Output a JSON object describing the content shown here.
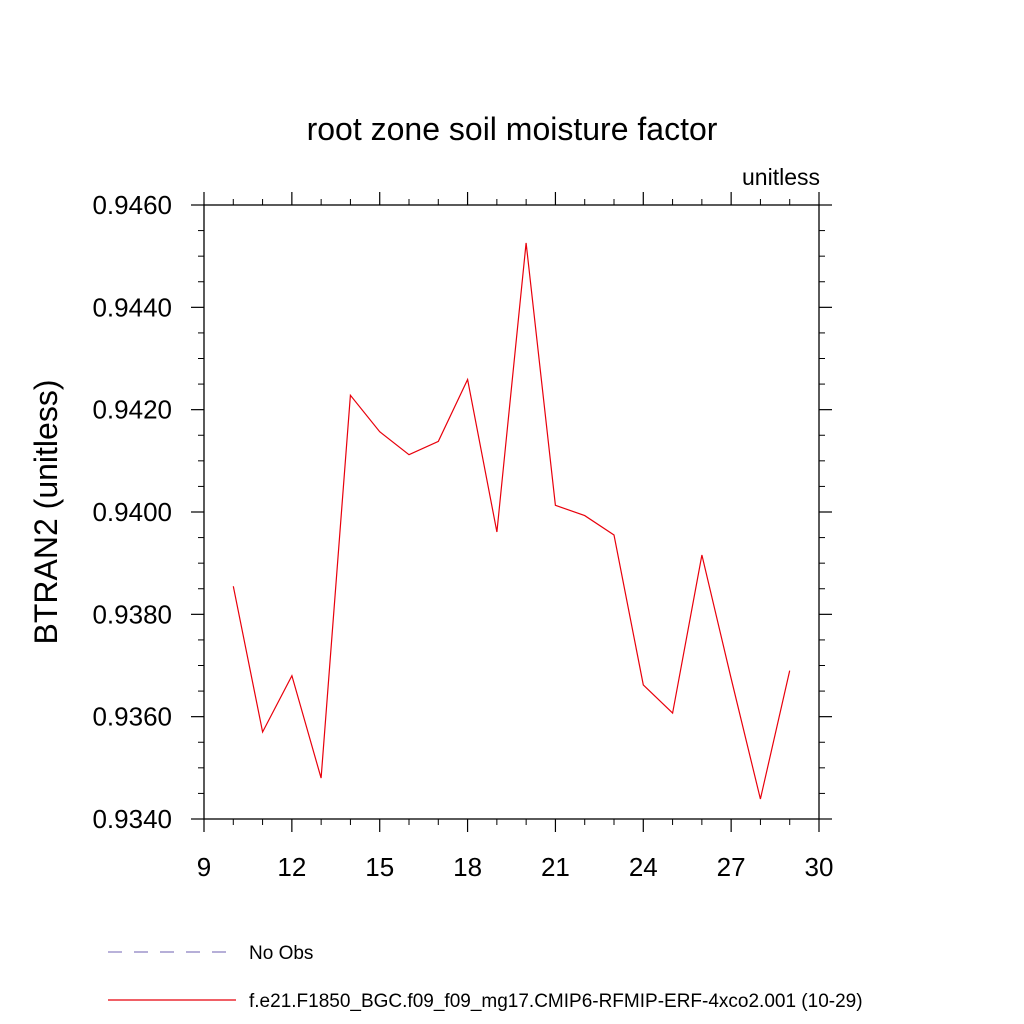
{
  "chart_data": {
    "type": "line",
    "title": "root zone soil moisture factor",
    "units_label": "unitless",
    "ylabel": "BTRAN2  (unitless)",
    "xlabel": "",
    "xlim": [
      9,
      30
    ],
    "ylim": [
      0.934,
      0.946
    ],
    "x_ticks": [
      "9",
      "12",
      "15",
      "18",
      "21",
      "24",
      "27",
      "30"
    ],
    "y_ticks": [
      "0.9340",
      "0.9360",
      "0.9380",
      "0.9400",
      "0.9420",
      "0.9440",
      "0.9460"
    ],
    "grid": false,
    "series": [
      {
        "name": "f.e21.F1850_BGC.f09_f09_mg17.CMIP6-RFMIP-ERF-4xco2.001 (10-29)",
        "color": "#e8000b",
        "style": "solid",
        "x": [
          10,
          11,
          12,
          13,
          14,
          15,
          16,
          17,
          18,
          19,
          20,
          21,
          22,
          23,
          24,
          25,
          26,
          27,
          28,
          29
        ],
        "y": [
          0.93855,
          0.9357,
          0.9368,
          0.9348,
          0.94228,
          0.94157,
          0.94112,
          0.94138,
          0.94259,
          0.93961,
          0.94526,
          0.94013,
          0.93993,
          0.93955,
          0.93662,
          0.93607,
          0.93916,
          0.93675,
          0.93439,
          0.9369
        ]
      }
    ],
    "legend": [
      {
        "label": "No Obs",
        "color": "#8a7fc0",
        "style": "dashed"
      },
      {
        "label": "f.e21.F1850_BGC.f09_f09_mg17.CMIP6-RFMIP-ERF-4xco2.001 (10-29)",
        "color": "#e8000b",
        "style": "solid"
      }
    ],
    "legend_position": "bottom"
  }
}
